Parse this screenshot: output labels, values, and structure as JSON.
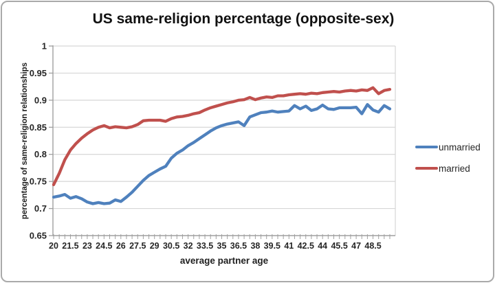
{
  "chart": {
    "title": "US same-religion percentage (opposite-sex)",
    "x_axis_title": "average partner age",
    "y_axis_title": "percentage of same-religion relationships"
  },
  "legend": {
    "items": [
      {
        "label": "unmarried",
        "color": "#4f81bd"
      },
      {
        "label": "married",
        "color": "#c0504d"
      }
    ]
  },
  "chart_data": {
    "type": "line",
    "title": "US same-religion percentage (opposite-sex)",
    "xlabel": "average partner age",
    "ylabel": "percentage of same-religion relationships",
    "ylim": [
      0.65,
      1.0
    ],
    "grid": "horizontal",
    "legend_position": "right",
    "y_tick_labels": [
      "1",
      "0.95",
      "0.9",
      "0.85",
      "0.8",
      "0.75",
      "0.7",
      "0.65"
    ],
    "y_tick_values": [
      1,
      0.95,
      0.9,
      0.85,
      0.8,
      0.75,
      0.7,
      0.65
    ],
    "x_tick_labels": [
      "20",
      "21.5",
      "23",
      "24.5",
      "26",
      "27.5",
      "29",
      "30.5",
      "32",
      "33.5",
      "35",
      "36.5",
      "38",
      "39.5",
      "41",
      "42.5",
      "44",
      "45.5",
      "47",
      "48.5"
    ],
    "x_tick_values": [
      20,
      21.5,
      23,
      24.5,
      26,
      27.5,
      29,
      30.5,
      32,
      33.5,
      35,
      36.5,
      38,
      39.5,
      41,
      42.5,
      44,
      45.5,
      47,
      48.5
    ],
    "x": [
      20,
      20.5,
      21,
      21.5,
      22,
      22.5,
      23,
      23.5,
      24,
      24.5,
      25,
      25.5,
      26,
      26.5,
      27,
      27.5,
      28,
      28.5,
      29,
      29.5,
      30,
      30.5,
      31,
      31.5,
      32,
      32.5,
      33,
      33.5,
      34,
      34.5,
      35,
      35.5,
      36,
      36.5,
      37,
      37.5,
      38,
      38.5,
      39,
      39.5,
      40,
      40.5,
      41,
      41.5,
      42,
      42.5,
      43,
      43.5,
      44,
      44.5,
      45,
      45.5,
      46,
      46.5,
      47,
      47.5,
      48,
      48.5,
      49,
      49.5,
      50
    ],
    "series": [
      {
        "name": "unmarried",
        "color": "#4f81bd",
        "values": [
          0.721,
          0.723,
          0.726,
          0.719,
          0.722,
          0.718,
          0.712,
          0.709,
          0.711,
          0.709,
          0.71,
          0.716,
          0.713,
          0.721,
          0.73,
          0.741,
          0.752,
          0.761,
          0.767,
          0.773,
          0.778,
          0.793,
          0.802,
          0.808,
          0.816,
          0.822,
          0.829,
          0.836,
          0.843,
          0.849,
          0.853,
          0.856,
          0.858,
          0.86,
          0.853,
          0.869,
          0.873,
          0.877,
          0.878,
          0.88,
          0.878,
          0.879,
          0.88,
          0.89,
          0.884,
          0.889,
          0.881,
          0.884,
          0.891,
          0.884,
          0.883,
          0.886,
          0.886,
          0.886,
          0.887,
          0.875,
          0.892,
          0.882,
          0.878,
          0.89,
          0.884
        ]
      },
      {
        "name": "married",
        "color": "#c0504d",
        "values": [
          0.744,
          0.765,
          0.79,
          0.808,
          0.82,
          0.83,
          0.838,
          0.845,
          0.85,
          0.853,
          0.849,
          0.851,
          0.85,
          0.849,
          0.851,
          0.855,
          0.862,
          0.863,
          0.863,
          0.863,
          0.861,
          0.866,
          0.869,
          0.87,
          0.872,
          0.875,
          0.877,
          0.882,
          0.886,
          0.889,
          0.892,
          0.895,
          0.897,
          0.9,
          0.901,
          0.905,
          0.901,
          0.904,
          0.906,
          0.905,
          0.908,
          0.908,
          0.91,
          0.911,
          0.912,
          0.911,
          0.913,
          0.912,
          0.914,
          0.915,
          0.916,
          0.915,
          0.917,
          0.918,
          0.917,
          0.919,
          0.918,
          0.923,
          0.912,
          0.918,
          0.92
        ]
      }
    ]
  }
}
